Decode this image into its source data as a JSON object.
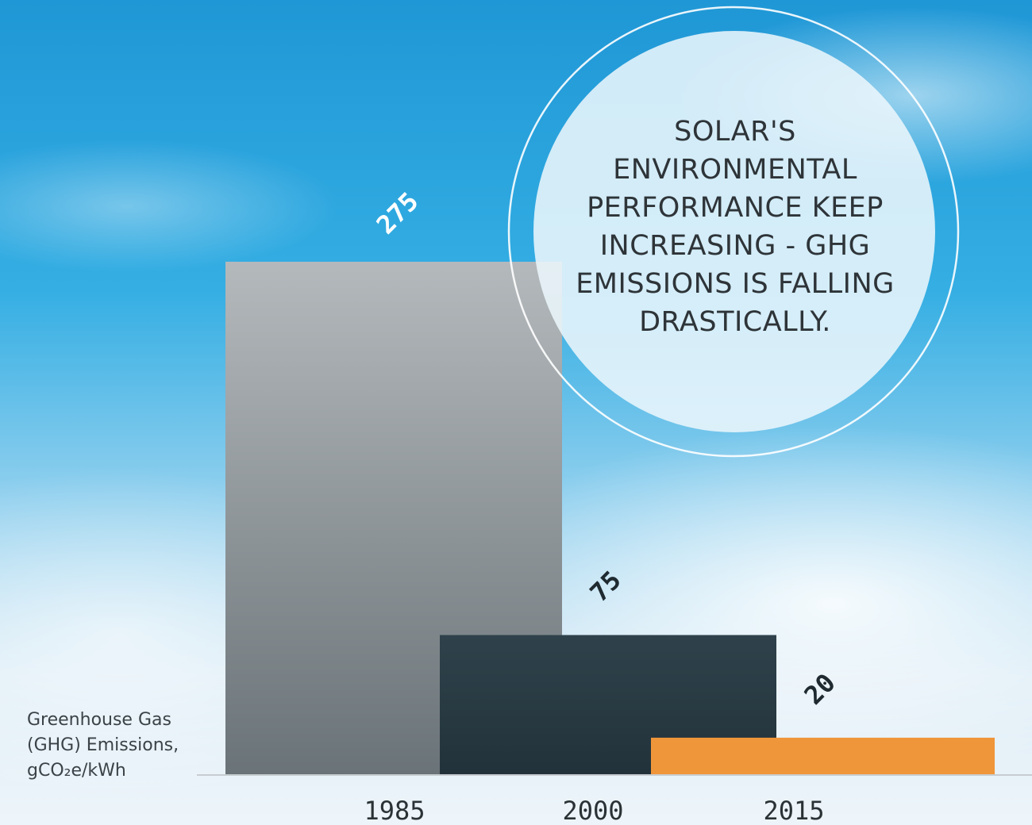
{
  "chart_data": {
    "type": "bar",
    "title": [
      "SOLAR'S",
      "ENVIRONMENTAL",
      "PERFORMANCE KEEP",
      "INCREASING - GHG",
      "EMISSIONS IS FALLING",
      "DRASTICALLY."
    ],
    "ylabel": [
      "Greenhouse Gas",
      "(GHG) Emissions,",
      "gCO₂e/kWh"
    ],
    "categories": [
      "1985",
      "2000",
      "2015"
    ],
    "values": [
      275,
      75,
      20
    ],
    "colors": [
      "#9aa1a5",
      "#2a3b43",
      "#f0963a"
    ]
  }
}
